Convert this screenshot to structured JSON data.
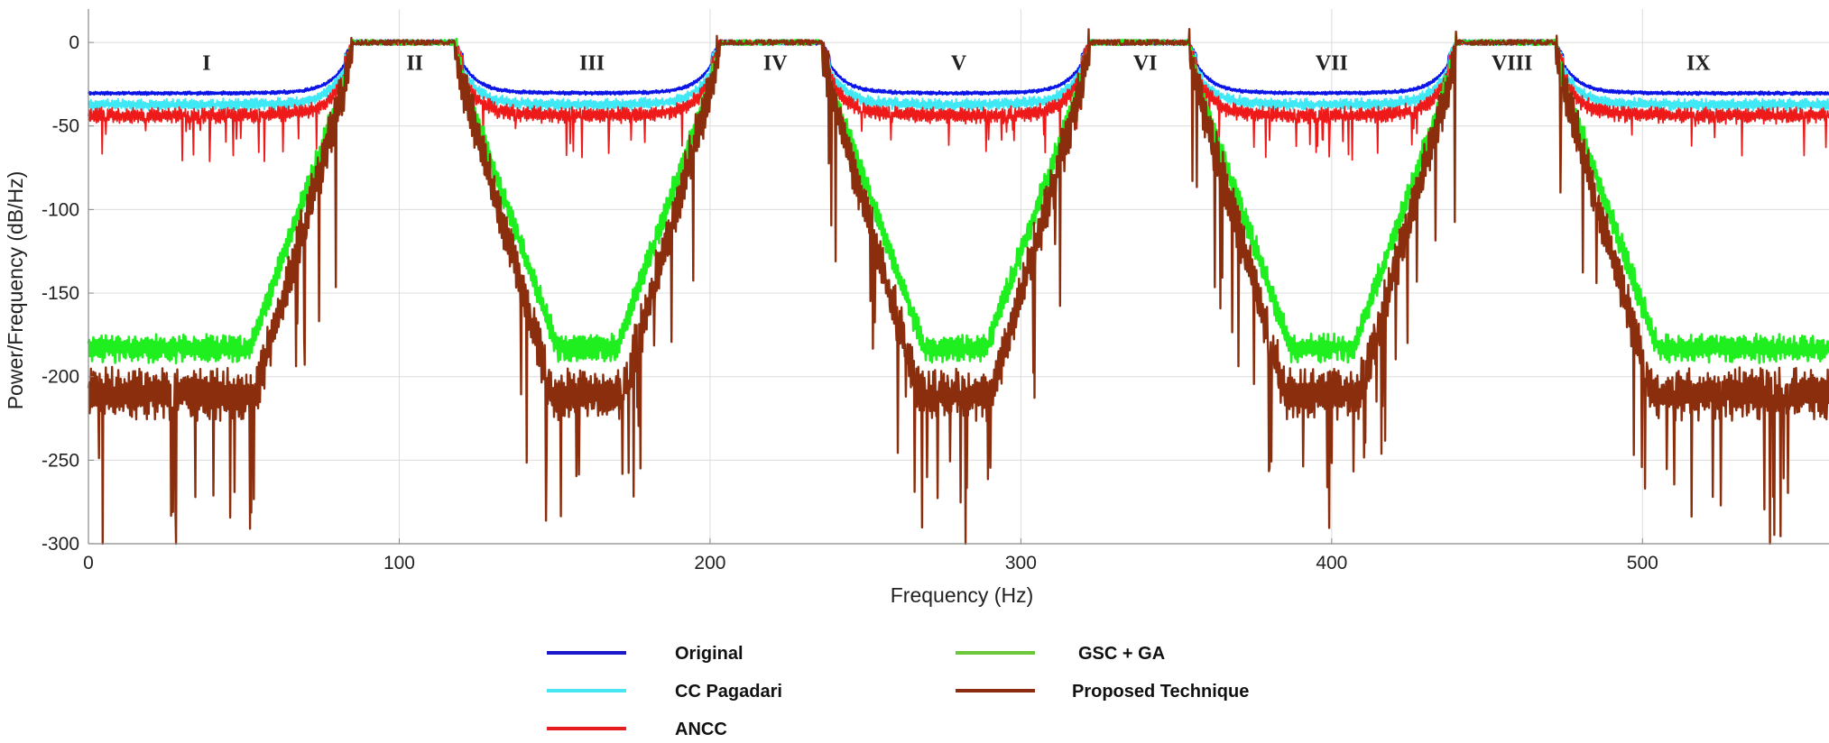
{
  "chart_data": {
    "type": "line",
    "title": "",
    "xlabel": "Frequency (Hz)",
    "ylabel": "Power/Frequency (dB/Hz)",
    "xlim": [
      0,
      560
    ],
    "ylim": [
      -300,
      20
    ],
    "xticks": [
      0,
      100,
      200,
      300,
      400,
      500
    ],
    "yticks": [
      0,
      -50,
      -100,
      -150,
      -200,
      -250,
      -300
    ],
    "grid": true,
    "bands": [
      {
        "label": "I",
        "x": 38
      },
      {
        "label": "II",
        "x": 105
      },
      {
        "label": "III",
        "x": 162
      },
      {
        "label": "IV",
        "x": 221
      },
      {
        "label": "V",
        "x": 280
      },
      {
        "label": "VI",
        "x": 340
      },
      {
        "label": "VII",
        "x": 400
      },
      {
        "label": "VIII",
        "x": 458
      },
      {
        "label": "IX",
        "x": 518
      }
    ],
    "passbands": [
      [
        85,
        118
      ],
      [
        203,
        236
      ],
      [
        322,
        354
      ],
      [
        440,
        472
      ]
    ],
    "series": [
      {
        "name": "Original",
        "color": "#0a14e6",
        "stopband_range_db": [
          -33,
          -28
        ]
      },
      {
        "name": "CC Pagadari",
        "color": "#3ee8f5",
        "stopband_range_db": [
          -42,
          -32
        ]
      },
      {
        "name": "ANCC",
        "color": "#ee1a1a",
        "stopband_range_db": [
          -52,
          -38
        ]
      },
      {
        "name": "GSC + GA",
        "color": "#1fef1f",
        "stopband_range_db": [
          -200,
          -170
        ]
      },
      {
        "name": "Proposed Technique",
        "color": "#8b2e0e",
        "stopband_range_db": [
          -240,
          -195
        ]
      }
    ]
  },
  "legend": {
    "items": [
      {
        "label": "Original",
        "color": "#1a18c9"
      },
      {
        "label": "CC Pagadari",
        "color": "#49e6f2"
      },
      {
        "label": "ANCC",
        "color": "#e41e1e"
      },
      {
        "label": "GSC + GA",
        "color": "#6cc83a"
      },
      {
        "label": "Proposed Technique",
        "color": "#8b2b0f"
      }
    ]
  }
}
